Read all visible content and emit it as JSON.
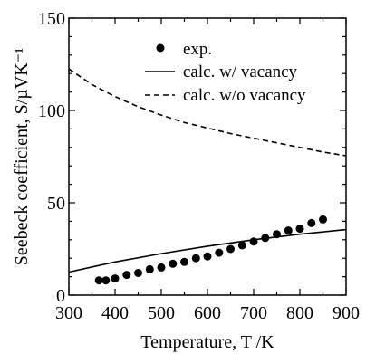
{
  "chart_data": {
    "type": "line",
    "title": "",
    "xlabel": "Temperature, T /K",
    "ylabel": "Seebeck coefficient, S/µVK⁻¹",
    "xlim": [
      300,
      900
    ],
    "ylim": [
      0,
      150
    ],
    "x_ticks": [
      "300",
      "400",
      "500",
      "600",
      "700",
      "800",
      "900"
    ],
    "y_ticks": [
      "0",
      "50",
      "100",
      "150"
    ],
    "grid": false,
    "legend_position": "top-right",
    "legend": [
      {
        "label": "exp.",
        "style": "dots"
      },
      {
        "label": "calc. w/ vacancy",
        "style": "solid"
      },
      {
        "label": "calc. w/o vacancy",
        "style": "dashed"
      }
    ],
    "series": [
      {
        "name": "exp.",
        "style": "dots",
        "x": [
          365,
          380,
          400,
          425,
          450,
          475,
          500,
          525,
          550,
          575,
          600,
          625,
          650,
          675,
          700,
          725,
          750,
          775,
          800,
          825,
          850
        ],
        "y": [
          8,
          8,
          9,
          11,
          12,
          14,
          15,
          17,
          18,
          20,
          21,
          23,
          25,
          27,
          29,
          31,
          33,
          35,
          36,
          39,
          41
        ]
      },
      {
        "name": "calc. w/ vacancy",
        "style": "solid",
        "x": [
          300,
          400,
          500,
          600,
          700,
          800,
          900
        ],
        "y": [
          12.5,
          18,
          22.5,
          26.5,
          30,
          33,
          35.5
        ]
      },
      {
        "name": "calc. w/o vacancy",
        "style": "dashed",
        "x": [
          300,
          350,
          400,
          450,
          500,
          550,
          600,
          650,
          700,
          750,
          800,
          850,
          900
        ],
        "y": [
          122.5,
          114,
          107.5,
          102,
          97.5,
          93.5,
          90.5,
          87.5,
          85,
          82.5,
          80,
          77.5,
          75.5
        ]
      }
    ]
  }
}
